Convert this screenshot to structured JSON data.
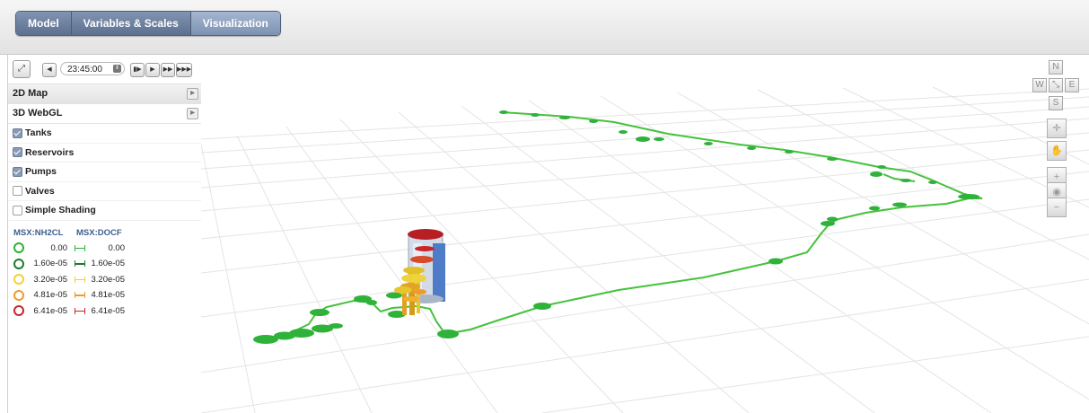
{
  "tabs": [
    "Model",
    "Variables & Scales",
    "Visualization"
  ],
  "active_tab_index": 2,
  "playback": {
    "time": "23:45:00",
    "stepper_icon": "stepper-icon",
    "buttons": [
      "step-back-icon",
      "step-forward-icon",
      "play-icon",
      "fast-forward-icon",
      "fastest-forward-icon"
    ]
  },
  "sidebar": {
    "map2d_label": "2D Map",
    "webgl_label": "3D WebGL",
    "options": [
      {
        "label": "Tanks",
        "checked": true
      },
      {
        "label": "Reservoirs",
        "checked": true
      },
      {
        "label": "Pumps",
        "checked": true
      },
      {
        "label": "Valves",
        "checked": false
      },
      {
        "label": "Simple Shading",
        "checked": false
      }
    ]
  },
  "legend": {
    "node_header": "MSX:NH2CL",
    "link_header": "MSX:DOCF",
    "rows": [
      {
        "node_value": "0.00",
        "link_value": "0.00",
        "color": "#2db23a"
      },
      {
        "node_value": "1.60e-05",
        "link_value": "1.60e-05",
        "color": "#1f7a2a"
      },
      {
        "node_value": "3.20e-05",
        "link_value": "3.20e-05",
        "color": "#f0d23a"
      },
      {
        "node_value": "4.81e-05",
        "link_value": "4.81e-05",
        "color": "#f09a2a"
      },
      {
        "node_value": "6.41e-05",
        "link_value": "6.41e-05",
        "color": "#c8252a"
      }
    ]
  },
  "navigation": {
    "north": "N",
    "west": "W",
    "east": "E",
    "south": "S",
    "tools": [
      "pan-icon",
      "hand-icon",
      "zoom-in-icon",
      "globe-icon",
      "zoom-out-icon"
    ]
  },
  "colors": {
    "pipe": "#45c23c",
    "pipe_dark": "#2f9a2d",
    "tab_active": "#8ea2c0",
    "legend_header": "#3c5f8f"
  }
}
